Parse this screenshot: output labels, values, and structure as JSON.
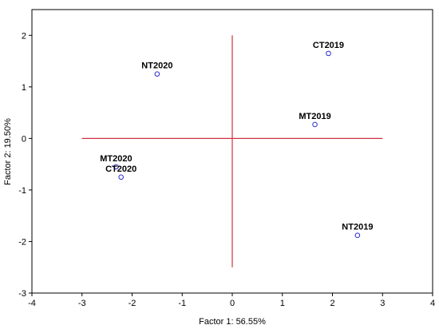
{
  "chart_data": {
    "type": "scatter",
    "xlabel": "Factor 1: 56.55%",
    "ylabel": "Factor 2: 19.50%",
    "xlim": [
      -4,
      4
    ],
    "ylim": [
      -3,
      2.5
    ],
    "xticks": [
      -4,
      -3,
      -2,
      -1,
      0,
      1,
      2,
      3,
      4
    ],
    "yticks": [
      -3,
      -2,
      -1,
      0,
      1,
      2
    ],
    "grid": false,
    "points": [
      {
        "label": "CT2019",
        "x": 1.92,
        "y": 1.65
      },
      {
        "label": "NT2020",
        "x": -1.5,
        "y": 1.25
      },
      {
        "label": "MT2019",
        "x": 1.65,
        "y": 0.27
      },
      {
        "label": "MT2020",
        "x": -2.32,
        "y": -0.55
      },
      {
        "label": "CT2020",
        "x": -2.22,
        "y": -0.75
      },
      {
        "label": "NT2019",
        "x": 2.5,
        "y": -1.88
      }
    ],
    "reference_lines": {
      "color": "#d03040",
      "horizontal": {
        "y": 0,
        "x_from": -3,
        "x_to": 3
      },
      "vertical": {
        "x": 0,
        "y_from": -2.5,
        "y_to": 2
      }
    },
    "colors": {
      "point": "#2a2ad0",
      "axis": "#000000"
    }
  }
}
